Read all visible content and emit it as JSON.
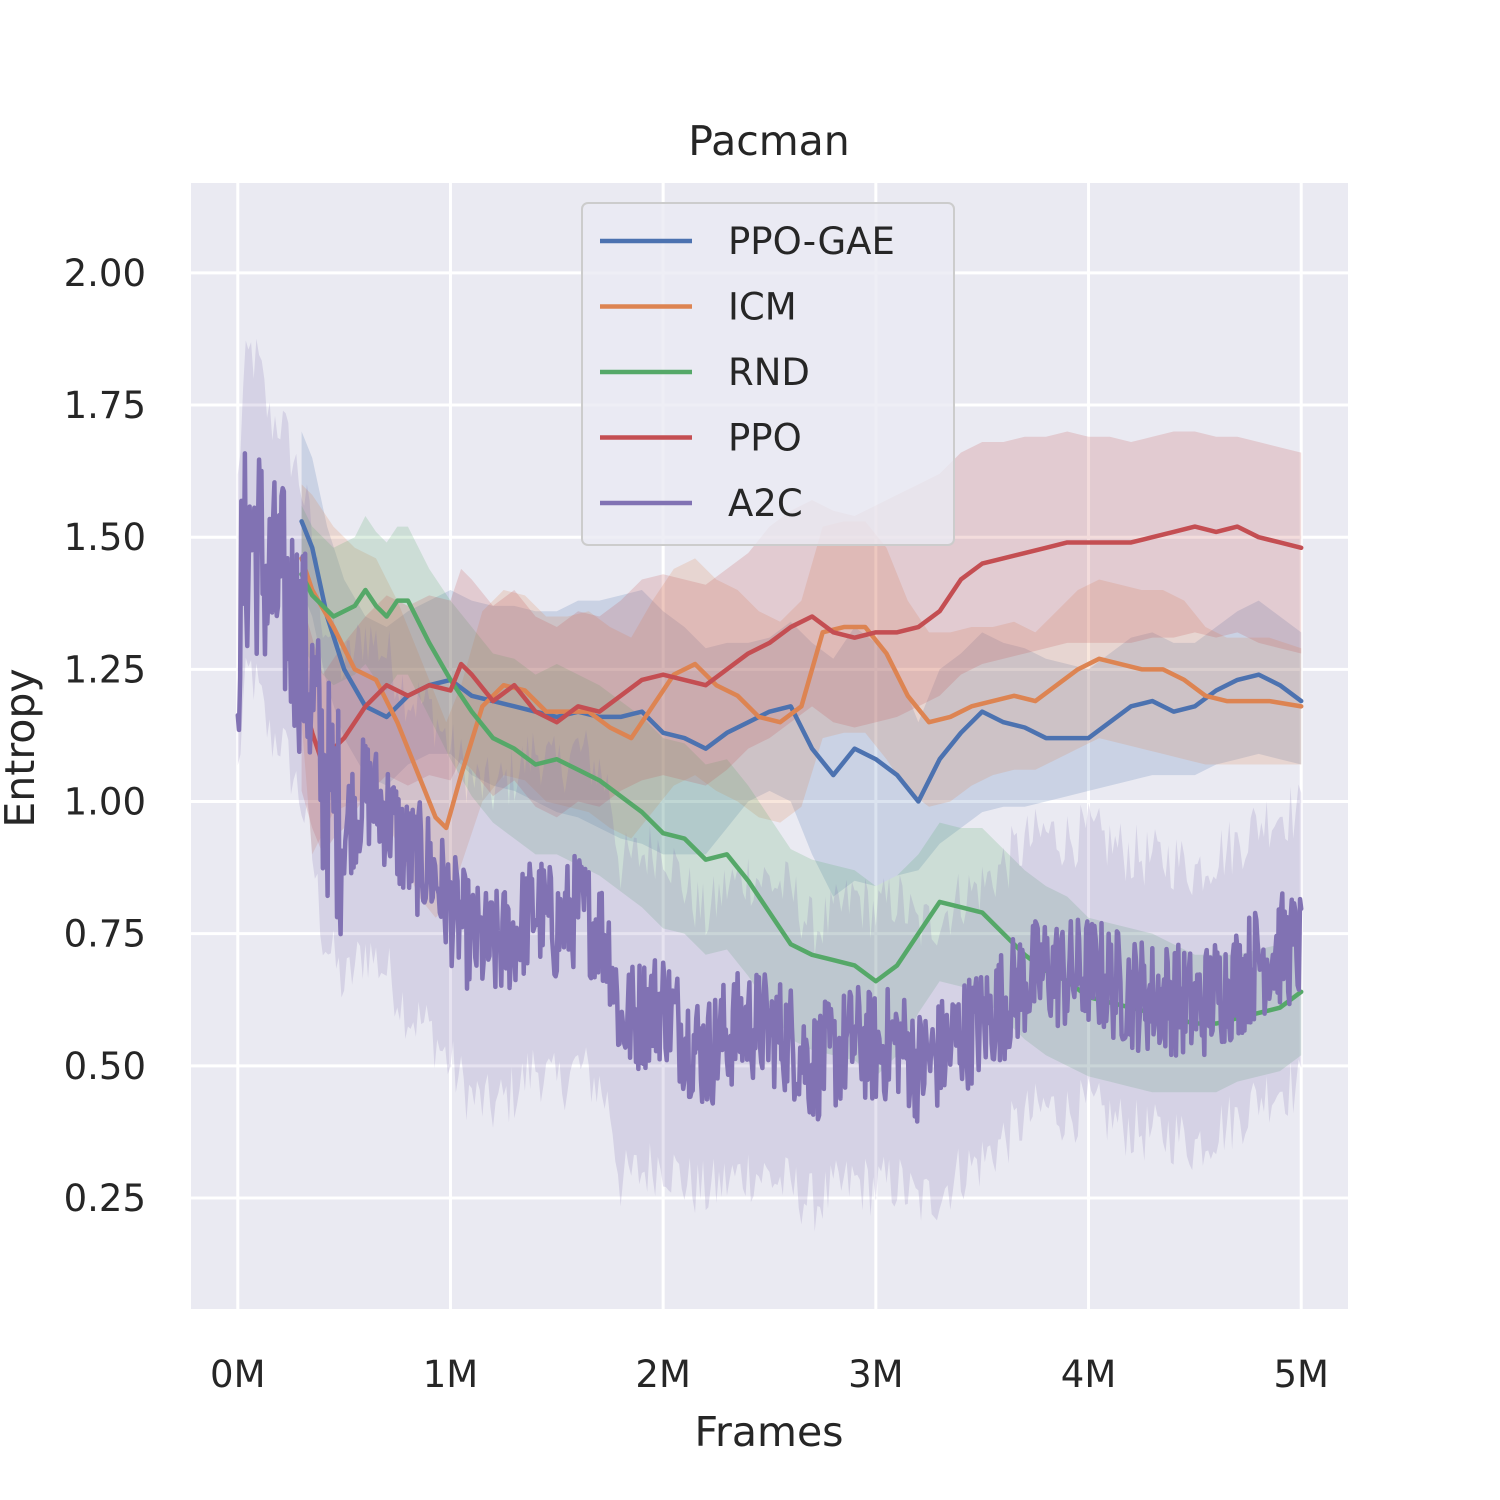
{
  "chart_data": {
    "type": "line",
    "title": "Pacman",
    "xlabel": "Frames",
    "ylabel": "Entropy",
    "xlim": [
      -0.22,
      5.22
    ],
    "ylim": [
      0.04,
      2.17
    ],
    "x_ticks": [
      0,
      1,
      2,
      3,
      4,
      5
    ],
    "x_tick_labels": [
      "0M",
      "1M",
      "2M",
      "3M",
      "4M",
      "5M"
    ],
    "y_ticks": [
      0.25,
      0.5,
      0.75,
      1.0,
      1.25,
      1.5,
      1.75,
      2.0
    ],
    "y_tick_labels": [
      "0.25",
      "0.50",
      "0.75",
      "1.00",
      "1.25",
      "1.50",
      "1.75",
      "2.00"
    ],
    "grid": true,
    "legend_position": "upper center",
    "series": [
      {
        "name": "PPO-GAE",
        "color": "#4c72b0",
        "x": [
          0.3,
          0.35,
          0.42,
          0.5,
          0.6,
          0.7,
          0.8,
          0.9,
          1.0,
          1.1,
          1.2,
          1.3,
          1.4,
          1.5,
          1.6,
          1.7,
          1.8,
          1.9,
          2.0,
          2.1,
          2.2,
          2.3,
          2.4,
          2.5,
          2.6,
          2.7,
          2.8,
          2.9,
          3.0,
          3.1,
          3.2,
          3.3,
          3.4,
          3.5,
          3.6,
          3.7,
          3.8,
          3.9,
          4.0,
          4.1,
          4.2,
          4.3,
          4.4,
          4.5,
          4.6,
          4.7,
          4.8,
          4.9,
          5.0
        ],
        "y": [
          1.53,
          1.48,
          1.35,
          1.25,
          1.18,
          1.16,
          1.2,
          1.22,
          1.23,
          1.2,
          1.19,
          1.18,
          1.17,
          1.16,
          1.17,
          1.16,
          1.16,
          1.17,
          1.13,
          1.12,
          1.1,
          1.13,
          1.15,
          1.17,
          1.18,
          1.1,
          1.05,
          1.1,
          1.08,
          1.05,
          1.0,
          1.08,
          1.13,
          1.17,
          1.15,
          1.14,
          1.12,
          1.12,
          1.12,
          1.15,
          1.18,
          1.19,
          1.17,
          1.18,
          1.21,
          1.23,
          1.24,
          1.22,
          1.19
        ],
        "lower": [
          1.4,
          1.35,
          1.22,
          1.12,
          1.05,
          1.03,
          1.07,
          1.09,
          1.09,
          1.05,
          1.03,
          1.02,
          1.0,
          0.98,
          0.97,
          0.95,
          0.93,
          0.92,
          0.9,
          0.9,
          0.9,
          0.95,
          1.0,
          1.02,
          1.0,
          0.9,
          0.82,
          0.85,
          0.84,
          0.86,
          0.87,
          0.92,
          0.95,
          0.98,
          0.99,
          0.99,
          1.0,
          1.01,
          1.02,
          1.03,
          1.04,
          1.05,
          1.05,
          1.05,
          1.07,
          1.08,
          1.09,
          1.08,
          1.07
        ],
        "upper": [
          1.7,
          1.65,
          1.52,
          1.42,
          1.35,
          1.33,
          1.36,
          1.38,
          1.4,
          1.38,
          1.37,
          1.37,
          1.36,
          1.36,
          1.38,
          1.38,
          1.39,
          1.4,
          1.36,
          1.33,
          1.29,
          1.3,
          1.3,
          1.31,
          1.34,
          1.3,
          1.27,
          1.33,
          1.3,
          1.25,
          1.15,
          1.25,
          1.28,
          1.32,
          1.3,
          1.29,
          1.27,
          1.26,
          1.25,
          1.28,
          1.31,
          1.32,
          1.3,
          1.3,
          1.33,
          1.36,
          1.38,
          1.35,
          1.32
        ]
      },
      {
        "name": "ICM",
        "color": "#dd8452",
        "x": [
          0.3,
          0.35,
          0.45,
          0.55,
          0.65,
          0.75,
          0.85,
          0.93,
          0.98,
          1.05,
          1.15,
          1.25,
          1.35,
          1.45,
          1.55,
          1.65,
          1.75,
          1.85,
          1.95,
          2.05,
          2.15,
          2.25,
          2.35,
          2.45,
          2.55,
          2.65,
          2.75,
          2.85,
          2.95,
          3.05,
          3.15,
          3.25,
          3.35,
          3.45,
          3.55,
          3.65,
          3.75,
          3.85,
          3.95,
          4.05,
          4.15,
          4.25,
          4.35,
          4.45,
          4.55,
          4.65,
          4.75,
          4.85,
          5.0
        ],
        "y": [
          1.46,
          1.4,
          1.33,
          1.25,
          1.23,
          1.15,
          1.05,
          0.97,
          0.95,
          1.05,
          1.18,
          1.22,
          1.21,
          1.17,
          1.17,
          1.17,
          1.14,
          1.12,
          1.18,
          1.24,
          1.26,
          1.22,
          1.2,
          1.16,
          1.15,
          1.18,
          1.32,
          1.33,
          1.33,
          1.28,
          1.2,
          1.15,
          1.16,
          1.18,
          1.19,
          1.2,
          1.19,
          1.22,
          1.25,
          1.27,
          1.26,
          1.25,
          1.25,
          1.23,
          1.2,
          1.19,
          1.19,
          1.19,
          1.18
        ],
        "lower": [
          1.15,
          0.9,
          0.98,
          1.0,
          1.0,
          0.92,
          0.82,
          0.78,
          0.8,
          0.88,
          1.0,
          1.05,
          1.04,
          1.0,
          0.99,
          0.98,
          0.95,
          0.93,
          0.98,
          1.03,
          1.05,
          1.02,
          1.0,
          0.97,
          0.96,
          0.99,
          1.12,
          1.13,
          1.13,
          1.08,
          1.02,
          0.99,
          1.0,
          1.03,
          1.05,
          1.06,
          1.06,
          1.08,
          1.1,
          1.12,
          1.11,
          1.1,
          1.09,
          1.08,
          1.07,
          1.07,
          1.07,
          1.07,
          1.07
        ],
        "upper": [
          1.6,
          1.58,
          1.52,
          1.48,
          1.46,
          1.38,
          1.28,
          1.2,
          1.15,
          1.22,
          1.36,
          1.4,
          1.39,
          1.35,
          1.35,
          1.36,
          1.33,
          1.31,
          1.38,
          1.44,
          1.46,
          1.42,
          1.4,
          1.36,
          1.34,
          1.38,
          1.52,
          1.53,
          1.53,
          1.48,
          1.38,
          1.32,
          1.32,
          1.33,
          1.33,
          1.34,
          1.32,
          1.36,
          1.4,
          1.42,
          1.41,
          1.4,
          1.4,
          1.38,
          1.33,
          1.31,
          1.31,
          1.31,
          1.29
        ]
      },
      {
        "name": "RND",
        "color": "#55a868",
        "x": [
          0.3,
          0.35,
          0.45,
          0.55,
          0.6,
          0.65,
          0.7,
          0.75,
          0.8,
          0.9,
          1.0,
          1.1,
          1.2,
          1.3,
          1.4,
          1.5,
          1.6,
          1.7,
          1.8,
          1.9,
          2.0,
          2.1,
          2.2,
          2.3,
          2.4,
          2.5,
          2.6,
          2.7,
          2.8,
          2.9,
          3.0,
          3.1,
          3.2,
          3.3,
          3.4,
          3.5,
          3.6,
          3.7,
          3.8,
          3.9,
          4.0,
          4.1,
          4.2,
          4.3,
          4.4,
          4.5,
          4.6,
          4.7,
          4.8,
          4.9,
          5.0
        ],
        "y": [
          1.43,
          1.39,
          1.35,
          1.37,
          1.4,
          1.37,
          1.35,
          1.38,
          1.38,
          1.3,
          1.23,
          1.17,
          1.12,
          1.1,
          1.07,
          1.08,
          1.06,
          1.04,
          1.01,
          0.98,
          0.94,
          0.93,
          0.89,
          0.9,
          0.85,
          0.79,
          0.73,
          0.71,
          0.7,
          0.69,
          0.66,
          0.69,
          0.75,
          0.81,
          0.8,
          0.79,
          0.75,
          0.71,
          0.68,
          0.66,
          0.63,
          0.62,
          0.61,
          0.6,
          0.59,
          0.58,
          0.58,
          0.59,
          0.6,
          0.61,
          0.64
        ],
        "lower": [
          1.3,
          1.26,
          1.22,
          1.24,
          1.26,
          1.23,
          1.21,
          1.24,
          1.24,
          1.16,
          1.08,
          1.01,
          0.96,
          0.93,
          0.9,
          0.9,
          0.88,
          0.86,
          0.83,
          0.8,
          0.76,
          0.75,
          0.71,
          0.72,
          0.67,
          0.61,
          0.55,
          0.53,
          0.52,
          0.51,
          0.48,
          0.52,
          0.6,
          0.66,
          0.65,
          0.63,
          0.59,
          0.55,
          0.52,
          0.5,
          0.48,
          0.47,
          0.46,
          0.45,
          0.45,
          0.45,
          0.45,
          0.47,
          0.48,
          0.49,
          0.52
        ],
        "upper": [
          1.56,
          1.52,
          1.48,
          1.5,
          1.54,
          1.51,
          1.49,
          1.52,
          1.52,
          1.44,
          1.38,
          1.33,
          1.28,
          1.27,
          1.24,
          1.26,
          1.24,
          1.22,
          1.19,
          1.16,
          1.12,
          1.11,
          1.07,
          1.08,
          1.03,
          0.97,
          0.91,
          0.89,
          0.88,
          0.87,
          0.84,
          0.86,
          0.9,
          0.96,
          0.95,
          0.95,
          0.91,
          0.87,
          0.84,
          0.82,
          0.78,
          0.77,
          0.76,
          0.75,
          0.73,
          0.71,
          0.71,
          0.71,
          0.72,
          0.73,
          0.76
        ]
      },
      {
        "name": "PPO",
        "color": "#c44e52",
        "x": [
          0.3,
          0.35,
          0.4,
          0.45,
          0.5,
          0.6,
          0.7,
          0.8,
          0.9,
          1.0,
          1.05,
          1.1,
          1.2,
          1.3,
          1.4,
          1.5,
          1.6,
          1.7,
          1.8,
          1.9,
          2.0,
          2.1,
          2.2,
          2.3,
          2.4,
          2.5,
          2.6,
          2.7,
          2.8,
          2.9,
          3.0,
          3.1,
          3.2,
          3.3,
          3.4,
          3.5,
          3.6,
          3.7,
          3.8,
          3.9,
          4.0,
          4.1,
          4.2,
          4.3,
          4.4,
          4.5,
          4.6,
          4.7,
          4.8,
          4.9,
          5.0
        ],
        "y": [
          1.2,
          1.13,
          1.07,
          1.1,
          1.12,
          1.18,
          1.22,
          1.2,
          1.22,
          1.21,
          1.26,
          1.24,
          1.19,
          1.22,
          1.17,
          1.15,
          1.18,
          1.17,
          1.2,
          1.23,
          1.24,
          1.23,
          1.22,
          1.25,
          1.28,
          1.3,
          1.33,
          1.35,
          1.32,
          1.31,
          1.32,
          1.32,
          1.33,
          1.36,
          1.42,
          1.45,
          1.46,
          1.47,
          1.48,
          1.49,
          1.49,
          1.49,
          1.49,
          1.5,
          1.51,
          1.52,
          1.51,
          1.52,
          1.5,
          1.49,
          1.48
        ],
        "lower": [
          1.02,
          0.95,
          0.9,
          0.93,
          0.95,
          1.01,
          1.05,
          1.03,
          1.05,
          1.04,
          1.08,
          1.06,
          1.01,
          1.04,
          0.99,
          0.97,
          1.0,
          0.99,
          1.02,
          1.04,
          1.05,
          1.04,
          1.03,
          1.06,
          1.1,
          1.12,
          1.15,
          1.18,
          1.15,
          1.14,
          1.15,
          1.16,
          1.18,
          1.2,
          1.24,
          1.26,
          1.27,
          1.28,
          1.29,
          1.3,
          1.3,
          1.3,
          1.3,
          1.31,
          1.31,
          1.32,
          1.31,
          1.32,
          1.3,
          1.29,
          1.28
        ],
        "upper": [
          1.38,
          1.31,
          1.24,
          1.27,
          1.3,
          1.35,
          1.39,
          1.37,
          1.39,
          1.38,
          1.44,
          1.42,
          1.37,
          1.4,
          1.35,
          1.33,
          1.36,
          1.35,
          1.38,
          1.42,
          1.43,
          1.42,
          1.41,
          1.44,
          1.47,
          1.52,
          1.55,
          1.57,
          1.55,
          1.54,
          1.56,
          1.58,
          1.6,
          1.62,
          1.66,
          1.68,
          1.68,
          1.69,
          1.69,
          1.7,
          1.69,
          1.69,
          1.68,
          1.69,
          1.7,
          1.7,
          1.69,
          1.69,
          1.68,
          1.67,
          1.66
        ]
      },
      {
        "name": "A2C",
        "color": "#8172b3",
        "noisy": true,
        "x": [
          0.0,
          0.03,
          0.06,
          0.1,
          0.15,
          0.2,
          0.25,
          0.3,
          0.35,
          0.4,
          0.45,
          0.5,
          0.6,
          0.7,
          0.8,
          0.9,
          1.0,
          1.1,
          1.2,
          1.3,
          1.4,
          1.5,
          1.6,
          1.7,
          1.75,
          1.8,
          1.9,
          2.0,
          2.1,
          2.2,
          2.3,
          2.4,
          2.5,
          2.6,
          2.7,
          2.8,
          2.9,
          3.0,
          3.1,
          3.2,
          3.3,
          3.4,
          3.5,
          3.6,
          3.7,
          3.8,
          3.9,
          4.0,
          4.1,
          4.2,
          4.3,
          4.4,
          4.5,
          4.6,
          4.7,
          4.8,
          4.9,
          5.0
        ],
        "y": [
          1.3,
          1.45,
          1.5,
          1.48,
          1.4,
          1.4,
          1.35,
          1.3,
          1.2,
          1.05,
          1.0,
          0.95,
          1.02,
          0.98,
          0.9,
          0.88,
          0.8,
          0.74,
          0.72,
          0.75,
          0.8,
          0.76,
          0.8,
          0.76,
          0.72,
          0.58,
          0.6,
          0.62,
          0.56,
          0.52,
          0.56,
          0.58,
          0.57,
          0.55,
          0.5,
          0.52,
          0.55,
          0.53,
          0.55,
          0.5,
          0.52,
          0.56,
          0.58,
          0.62,
          0.66,
          0.68,
          0.67,
          0.68,
          0.66,
          0.64,
          0.63,
          0.63,
          0.61,
          0.64,
          0.66,
          0.7,
          0.72,
          0.72
        ],
        "lower": [
          1.05,
          1.2,
          1.25,
          1.2,
          1.12,
          1.12,
          1.06,
          1.0,
          0.9,
          0.75,
          0.7,
          0.65,
          0.72,
          0.68,
          0.6,
          0.57,
          0.5,
          0.44,
          0.42,
          0.45,
          0.5,
          0.46,
          0.5,
          0.46,
          0.42,
          0.28,
          0.3,
          0.32,
          0.28,
          0.26,
          0.28,
          0.3,
          0.29,
          0.27,
          0.24,
          0.26,
          0.28,
          0.27,
          0.28,
          0.24,
          0.26,
          0.3,
          0.32,
          0.36,
          0.4,
          0.42,
          0.41,
          0.42,
          0.4,
          0.38,
          0.37,
          0.37,
          0.35,
          0.38,
          0.4,
          0.44,
          0.46,
          0.46
        ],
        "upper": [
          1.6,
          1.8,
          1.85,
          1.82,
          1.72,
          1.72,
          1.66,
          1.6,
          1.5,
          1.35,
          1.3,
          1.25,
          1.32,
          1.28,
          1.2,
          1.18,
          1.1,
          1.04,
          1.02,
          1.05,
          1.1,
          1.06,
          1.1,
          1.06,
          1.02,
          0.88,
          0.9,
          0.92,
          0.84,
          0.78,
          0.84,
          0.86,
          0.85,
          0.83,
          0.76,
          0.78,
          0.82,
          0.79,
          0.82,
          0.76,
          0.78,
          0.82,
          0.84,
          0.88,
          0.92,
          0.94,
          0.93,
          0.94,
          0.92,
          0.9,
          0.89,
          0.89,
          0.87,
          0.9,
          0.92,
          0.96,
          0.98,
          0.98
        ]
      }
    ]
  }
}
